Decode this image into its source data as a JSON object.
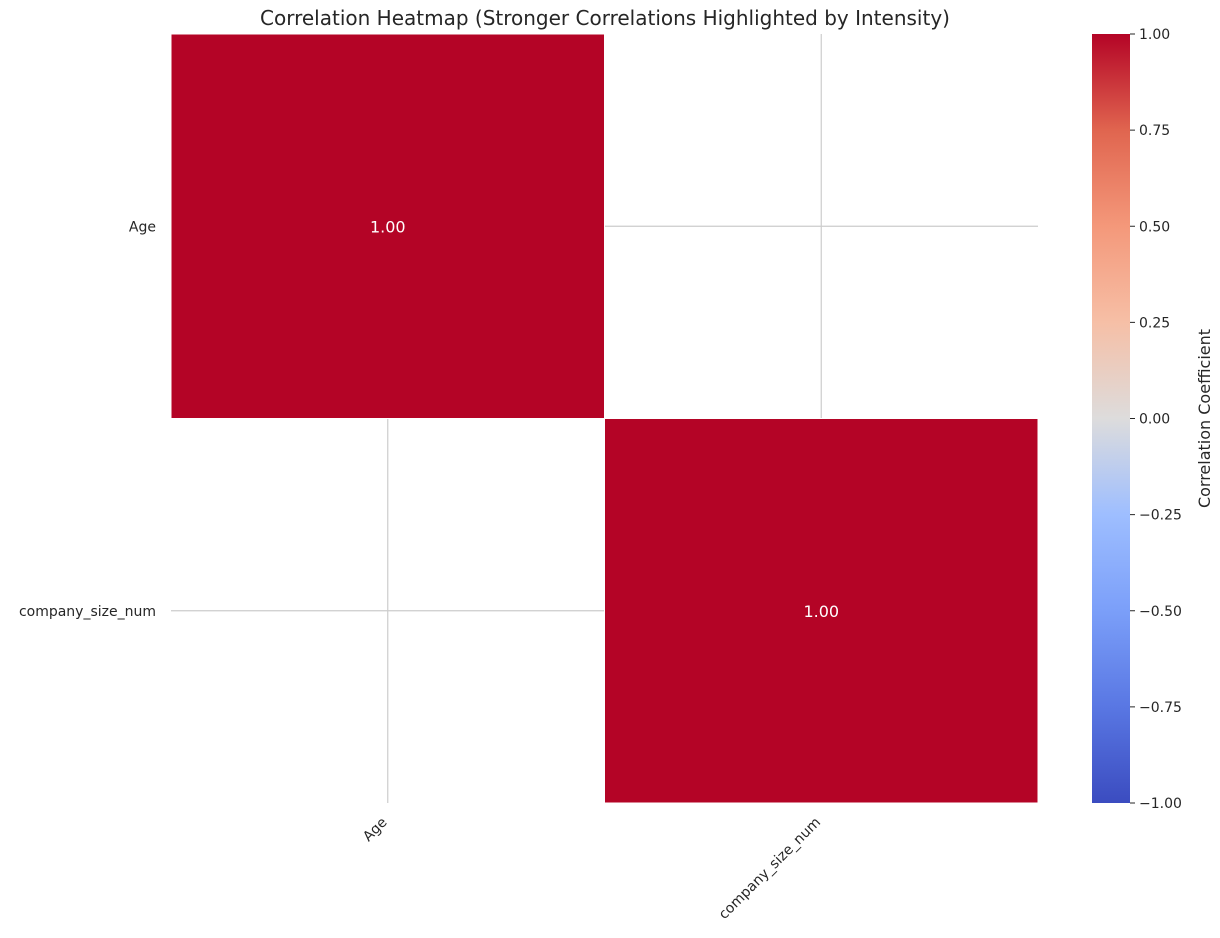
{
  "chart_data": {
    "type": "heatmap",
    "title": "Correlation Heatmap (Stronger Correlations Highlighted by Intensity)",
    "rows": [
      "Age",
      "company_size_num"
    ],
    "columns": [
      "Age",
      "company_size_num"
    ],
    "values": [
      [
        1.0,
        null
      ],
      [
        null,
        1.0
      ]
    ],
    "annotations": [
      [
        "1.00",
        ""
      ],
      [
        "",
        "1.00"
      ]
    ],
    "colormap": "coolwarm",
    "vmin": -1.0,
    "vmax": 1.0,
    "colorbar": {
      "label": "Correlation Coefficient",
      "ticks": [
        1.0,
        0.75,
        0.5,
        0.25,
        0.0,
        -0.25,
        -0.5,
        -0.75,
        -1.0
      ],
      "tick_labels": [
        "1.00",
        "0.75",
        "0.50",
        "0.25",
        "0.00",
        "−0.25",
        "−0.50",
        "−0.75",
        "−1.00"
      ]
    },
    "grid": true,
    "colors": {
      "cell": "#b40426",
      "grid": "#cccccc",
      "text": "#262626",
      "annotation": "#ffffff"
    }
  }
}
